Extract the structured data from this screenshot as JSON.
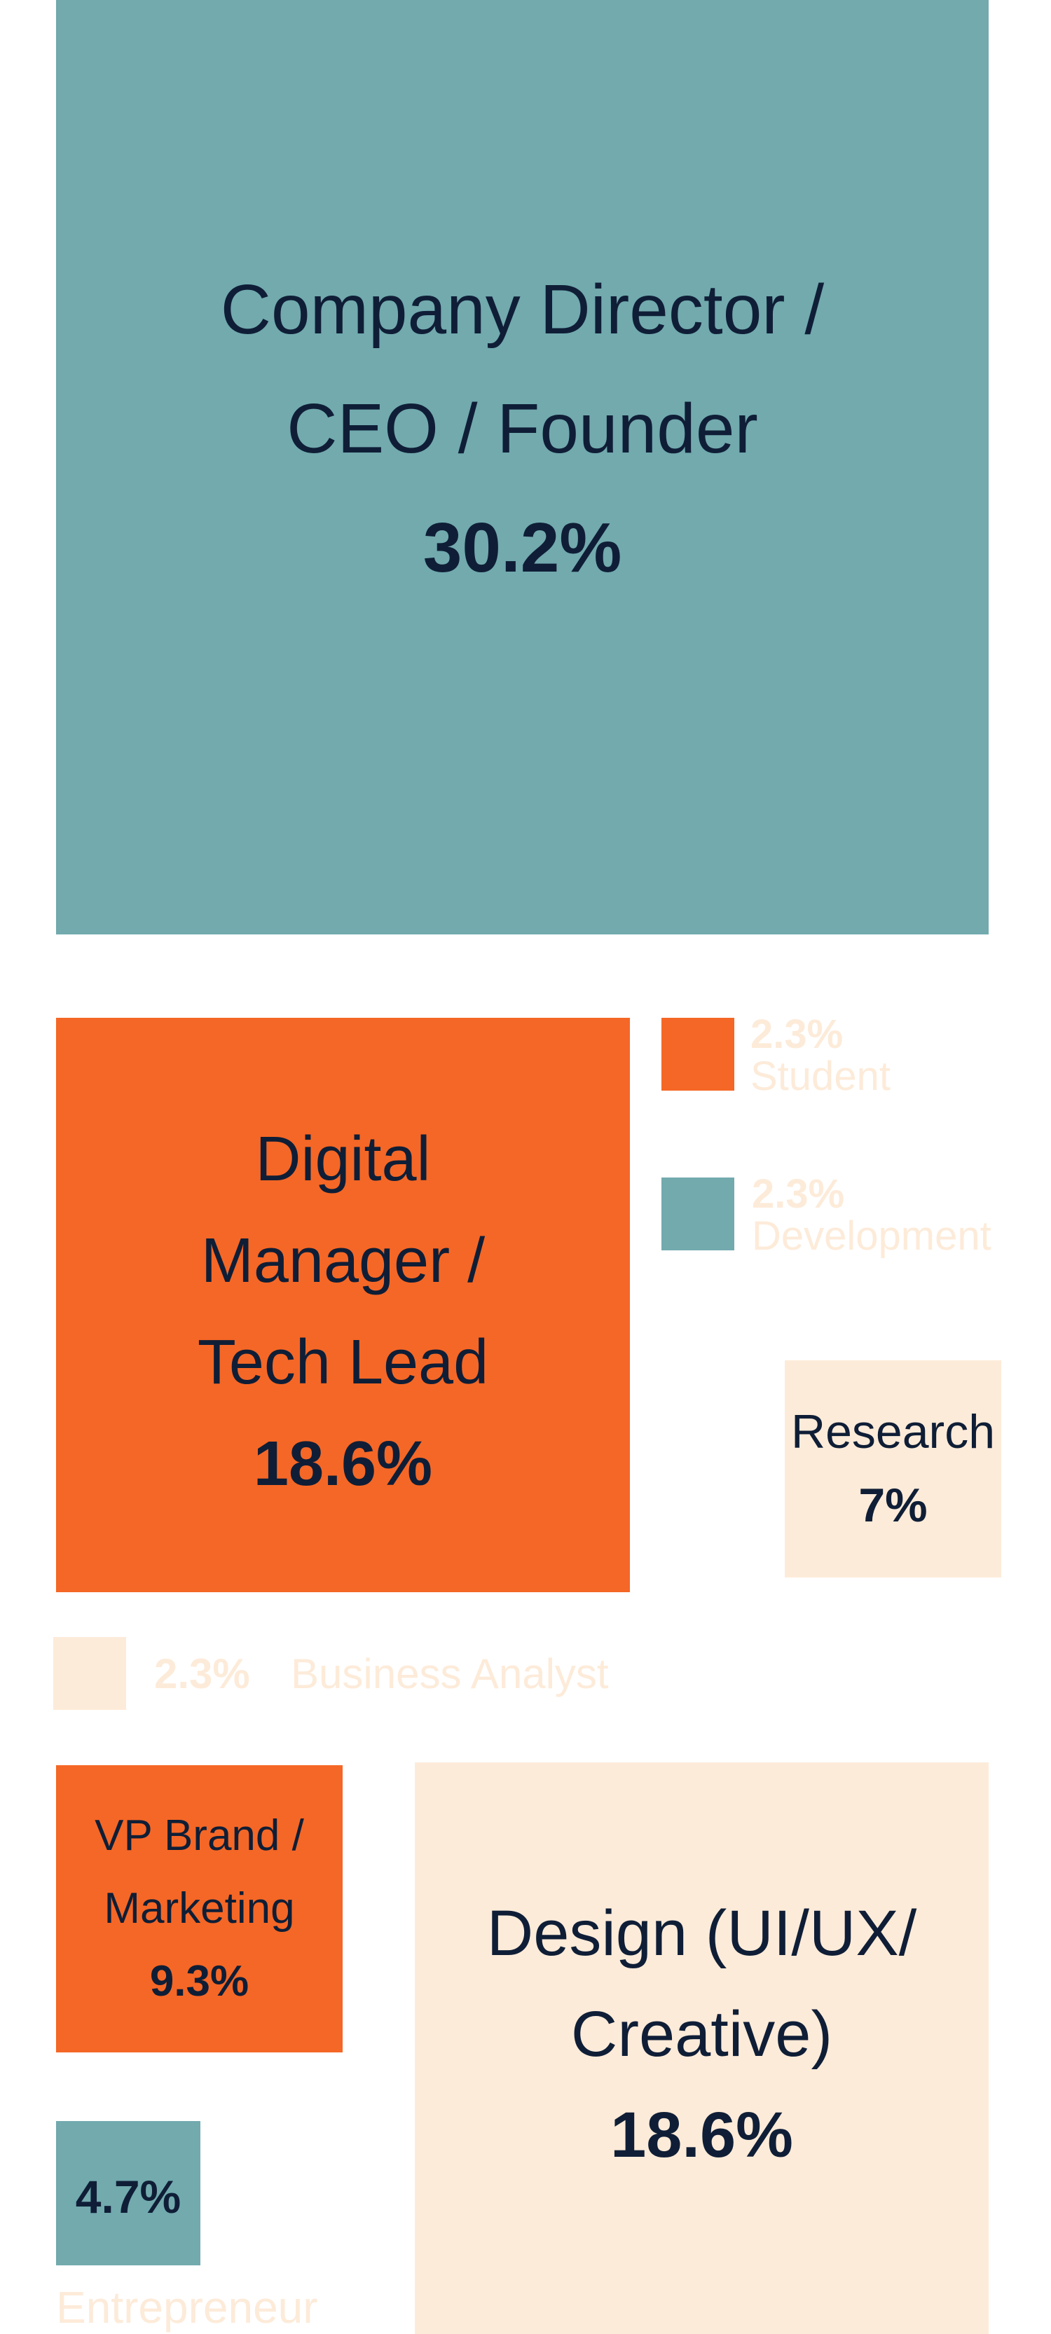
{
  "items": [
    {
      "lines": [
        "Company Director /",
        "CEO / Founder"
      ],
      "value": "30.2%"
    },
    {
      "lines": [
        "Digital",
        "Manager /",
        "Tech Lead"
      ],
      "value": "18.6%"
    },
    {
      "lines": [
        "Student"
      ],
      "value": "2.3%"
    },
    {
      "lines": [
        "Development"
      ],
      "value": "2.3%"
    },
    {
      "lines": [
        "Research"
      ],
      "value": "7%"
    },
    {
      "lines": [
        "Business Analyst"
      ],
      "value": "2.3%"
    },
    {
      "lines": [
        "VP Brand /",
        "Marketing"
      ],
      "value": "9.3%"
    },
    {
      "lines": [
        "Design (UI/UX/",
        "Creative)"
      ],
      "value": "18.6%"
    },
    {
      "lines": [
        "Entrepreneur"
      ],
      "value": "4.7%"
    }
  ]
}
